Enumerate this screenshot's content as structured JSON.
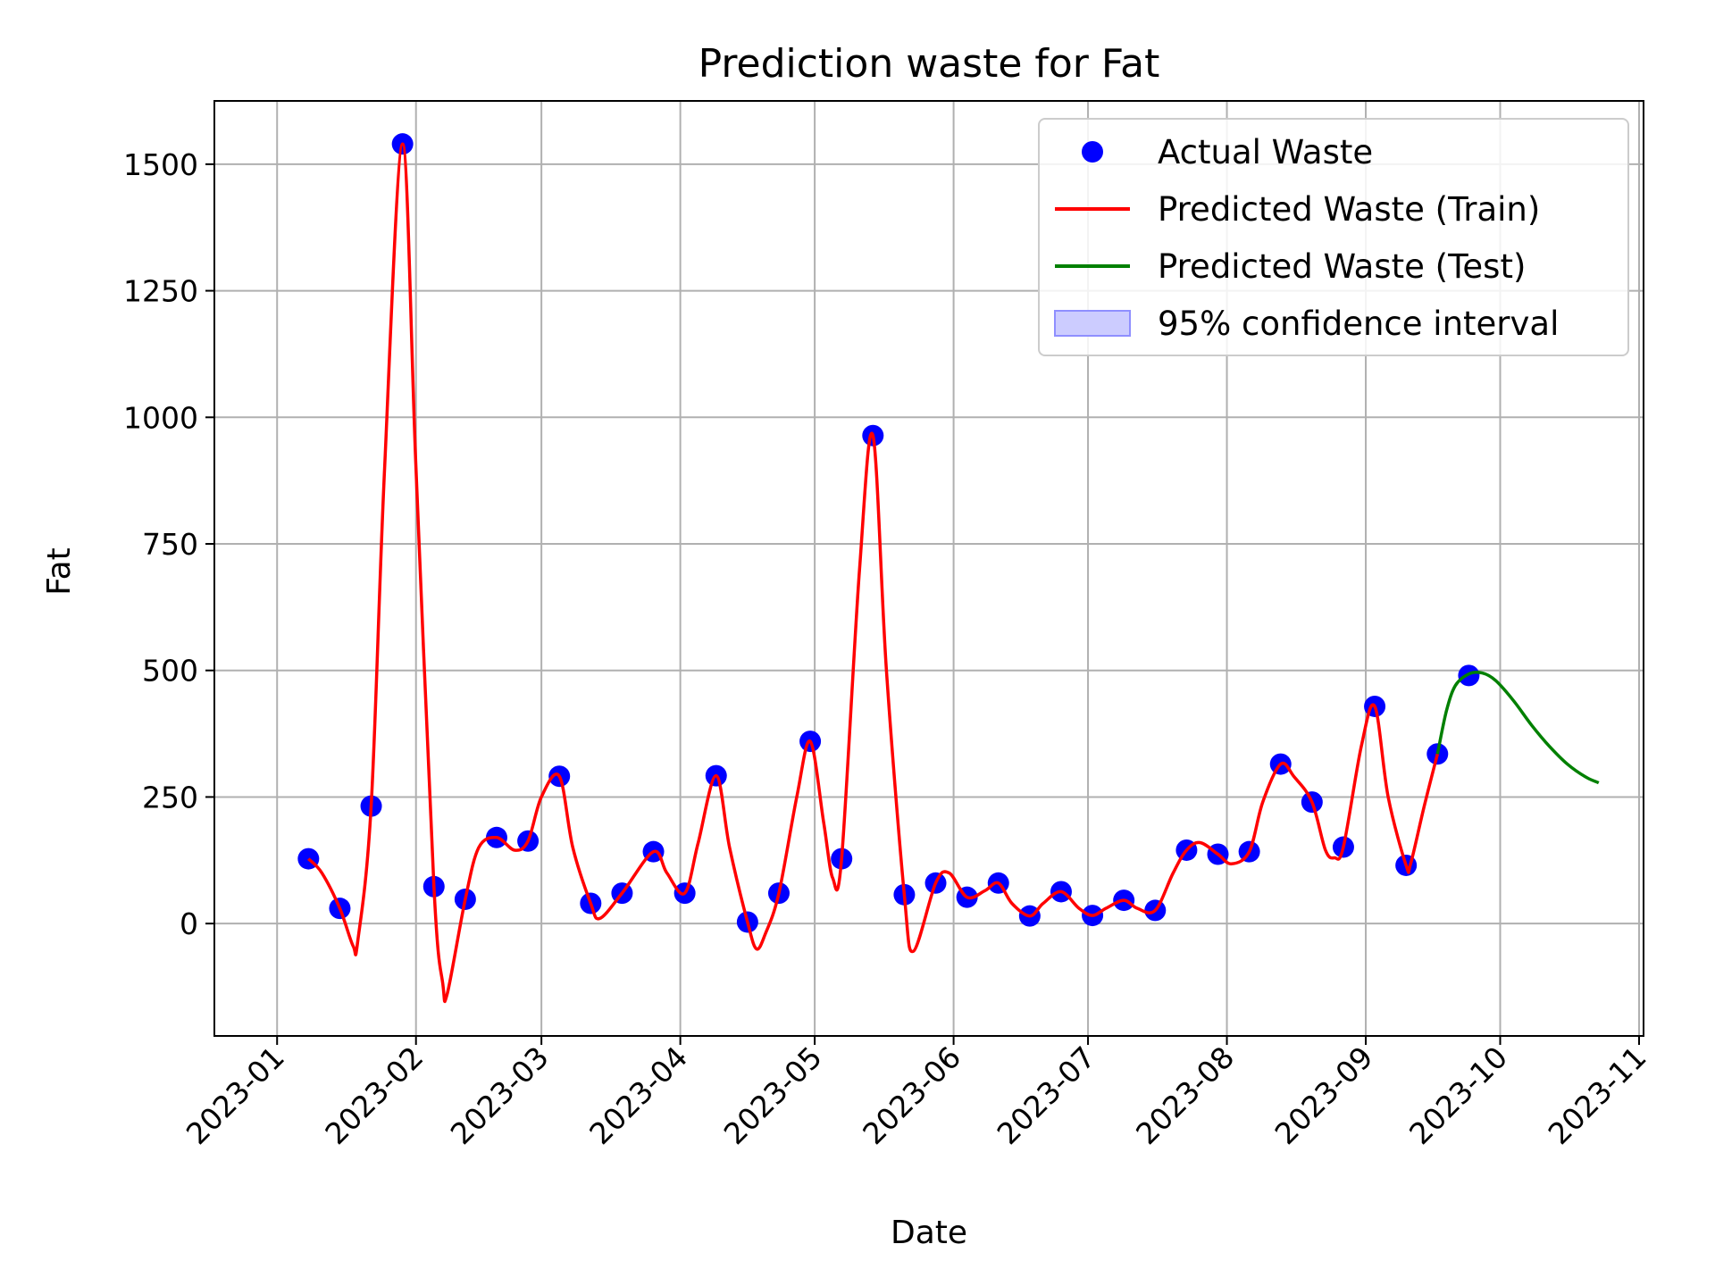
{
  "chart_data": {
    "type": "line",
    "title": "Prediction waste for Fat",
    "xlabel": "Date",
    "ylabel": "Fat",
    "x_tick_labels": [
      "2023-01",
      "2023-02",
      "2023-03",
      "2023-04",
      "2023-05",
      "2023-06",
      "2023-07",
      "2023-08",
      "2023-09",
      "2023-10",
      "2023-11"
    ],
    "x_tick_dates": [
      "2023-01-01",
      "2023-02-01",
      "2023-03-01",
      "2023-04-01",
      "2023-05-01",
      "2023-06-01",
      "2023-07-01",
      "2023-08-01",
      "2023-09-01",
      "2023-10-01",
      "2023-11-01"
    ],
    "xlim": [
      "2022-12-18",
      "2023-11-02"
    ],
    "y_ticks": [
      0,
      250,
      500,
      750,
      1000,
      1250,
      1500
    ],
    "ylim": [
      -222,
      1625
    ],
    "grid": true,
    "legend_position": "top-right",
    "colors": {
      "actual": "#0000ff",
      "train": "#ff0000",
      "test": "#008000",
      "ci_fill": "#ccccff",
      "ci_edge": "#8f8fff"
    },
    "legend": [
      {
        "label": "Actual Waste",
        "kind": "scatter"
      },
      {
        "label": "Predicted Waste (Train)",
        "kind": "line-train"
      },
      {
        "label": "Predicted Waste (Test)",
        "kind": "line-test"
      },
      {
        "label": "95% confidence interval",
        "kind": "band"
      }
    ],
    "actual_waste": [
      {
        "x": "2023-01-08",
        "y": 128
      },
      {
        "x": "2023-01-15",
        "y": 30
      },
      {
        "x": "2023-01-22",
        "y": 232
      },
      {
        "x": "2023-01-29",
        "y": 1540
      },
      {
        "x": "2023-02-05",
        "y": 73
      },
      {
        "x": "2023-02-12",
        "y": 48
      },
      {
        "x": "2023-02-19",
        "y": 170
      },
      {
        "x": "2023-02-26",
        "y": 163
      },
      {
        "x": "2023-03-05",
        "y": 291
      },
      {
        "x": "2023-03-12",
        "y": 40
      },
      {
        "x": "2023-03-19",
        "y": 60
      },
      {
        "x": "2023-03-26",
        "y": 142
      },
      {
        "x": "2023-04-02",
        "y": 60
      },
      {
        "x": "2023-04-09",
        "y": 292
      },
      {
        "x": "2023-04-16",
        "y": 3
      },
      {
        "x": "2023-04-23",
        "y": 60
      },
      {
        "x": "2023-04-30",
        "y": 360
      },
      {
        "x": "2023-05-07",
        "y": 128
      },
      {
        "x": "2023-05-14",
        "y": 964
      },
      {
        "x": "2023-05-21",
        "y": 57
      },
      {
        "x": "2023-05-28",
        "y": 80
      },
      {
        "x": "2023-06-04",
        "y": 52
      },
      {
        "x": "2023-06-11",
        "y": 80
      },
      {
        "x": "2023-06-18",
        "y": 15
      },
      {
        "x": "2023-06-25",
        "y": 63
      },
      {
        "x": "2023-07-02",
        "y": 16
      },
      {
        "x": "2023-07-09",
        "y": 46
      },
      {
        "x": "2023-07-16",
        "y": 26
      },
      {
        "x": "2023-07-23",
        "y": 145
      },
      {
        "x": "2023-07-30",
        "y": 137
      },
      {
        "x": "2023-08-06",
        "y": 142
      },
      {
        "x": "2023-08-13",
        "y": 315
      },
      {
        "x": "2023-08-20",
        "y": 240
      },
      {
        "x": "2023-08-27",
        "y": 151
      },
      {
        "x": "2023-09-03",
        "y": 429
      },
      {
        "x": "2023-09-10",
        "y": 115
      },
      {
        "x": "2023-09-17",
        "y": 335
      },
      {
        "x": "2023-09-24",
        "y": 490
      }
    ],
    "predicted_train": [
      {
        "x": "2023-01-08",
        "y": 128
      },
      {
        "x": "2023-01-11",
        "y": 100
      },
      {
        "x": "2023-01-15",
        "y": 30
      },
      {
        "x": "2023-01-18",
        "y": -45
      },
      {
        "x": "2023-01-19",
        "y": -35
      },
      {
        "x": "2023-01-22",
        "y": 232
      },
      {
        "x": "2023-01-25",
        "y": 900
      },
      {
        "x": "2023-01-29",
        "y": 1540
      },
      {
        "x": "2023-02-01",
        "y": 900
      },
      {
        "x": "2023-02-05",
        "y": 73
      },
      {
        "x": "2023-02-07",
        "y": -120
      },
      {
        "x": "2023-02-08",
        "y": -138
      },
      {
        "x": "2023-02-12",
        "y": 48
      },
      {
        "x": "2023-02-15",
        "y": 150
      },
      {
        "x": "2023-02-19",
        "y": 170
      },
      {
        "x": "2023-02-23",
        "y": 145
      },
      {
        "x": "2023-02-26",
        "y": 163
      },
      {
        "x": "2023-03-01",
        "y": 250
      },
      {
        "x": "2023-03-05",
        "y": 291
      },
      {
        "x": "2023-03-08",
        "y": 150
      },
      {
        "x": "2023-03-12",
        "y": 40
      },
      {
        "x": "2023-03-14",
        "y": 10
      },
      {
        "x": "2023-03-19",
        "y": 60
      },
      {
        "x": "2023-03-26",
        "y": 142
      },
      {
        "x": "2023-03-29",
        "y": 100
      },
      {
        "x": "2023-04-02",
        "y": 60
      },
      {
        "x": "2023-04-05",
        "y": 160
      },
      {
        "x": "2023-04-09",
        "y": 292
      },
      {
        "x": "2023-04-12",
        "y": 150
      },
      {
        "x": "2023-04-16",
        "y": 3
      },
      {
        "x": "2023-04-18",
        "y": -50
      },
      {
        "x": "2023-04-20",
        "y": -20
      },
      {
        "x": "2023-04-23",
        "y": 60
      },
      {
        "x": "2023-04-27",
        "y": 250
      },
      {
        "x": "2023-04-30",
        "y": 360
      },
      {
        "x": "2023-05-03",
        "y": 200
      },
      {
        "x": "2023-05-05",
        "y": 90
      },
      {
        "x": "2023-05-07",
        "y": 128
      },
      {
        "x": "2023-05-11",
        "y": 700
      },
      {
        "x": "2023-05-14",
        "y": 964
      },
      {
        "x": "2023-05-17",
        "y": 500
      },
      {
        "x": "2023-05-21",
        "y": 57
      },
      {
        "x": "2023-05-23",
        "y": -55
      },
      {
        "x": "2023-05-28",
        "y": 80
      },
      {
        "x": "2023-05-31",
        "y": 100
      },
      {
        "x": "2023-06-04",
        "y": 52
      },
      {
        "x": "2023-06-08",
        "y": 65
      },
      {
        "x": "2023-06-11",
        "y": 80
      },
      {
        "x": "2023-06-14",
        "y": 40
      },
      {
        "x": "2023-06-18",
        "y": 15
      },
      {
        "x": "2023-06-21",
        "y": 40
      },
      {
        "x": "2023-06-25",
        "y": 63
      },
      {
        "x": "2023-06-29",
        "y": 30
      },
      {
        "x": "2023-07-02",
        "y": 16
      },
      {
        "x": "2023-07-05",
        "y": 30
      },
      {
        "x": "2023-07-09",
        "y": 46
      },
      {
        "x": "2023-07-12",
        "y": 30
      },
      {
        "x": "2023-07-16",
        "y": 26
      },
      {
        "x": "2023-07-20",
        "y": 100
      },
      {
        "x": "2023-07-23",
        "y": 145
      },
      {
        "x": "2023-07-26",
        "y": 160
      },
      {
        "x": "2023-07-30",
        "y": 137
      },
      {
        "x": "2023-08-02",
        "y": 118
      },
      {
        "x": "2023-08-06",
        "y": 142
      },
      {
        "x": "2023-08-09",
        "y": 240
      },
      {
        "x": "2023-08-13",
        "y": 315
      },
      {
        "x": "2023-08-16",
        "y": 290
      },
      {
        "x": "2023-08-20",
        "y": 240
      },
      {
        "x": "2023-08-23",
        "y": 145
      },
      {
        "x": "2023-08-25",
        "y": 130
      },
      {
        "x": "2023-08-27",
        "y": 151
      },
      {
        "x": "2023-08-31",
        "y": 350
      },
      {
        "x": "2023-09-03",
        "y": 429
      },
      {
        "x": "2023-09-06",
        "y": 250
      },
      {
        "x": "2023-09-10",
        "y": 115
      },
      {
        "x": "2023-09-11",
        "y": 118
      },
      {
        "x": "2023-09-14",
        "y": 230
      },
      {
        "x": "2023-09-17",
        "y": 335
      }
    ],
    "predicted_test": [
      {
        "x": "2023-09-17",
        "y": 335
      },
      {
        "x": "2023-09-19",
        "y": 420
      },
      {
        "x": "2023-09-21",
        "y": 470
      },
      {
        "x": "2023-09-24",
        "y": 493
      },
      {
        "x": "2023-09-27",
        "y": 495
      },
      {
        "x": "2023-09-30",
        "y": 480
      },
      {
        "x": "2023-10-04",
        "y": 440
      },
      {
        "x": "2023-10-08",
        "y": 392
      },
      {
        "x": "2023-10-12",
        "y": 350
      },
      {
        "x": "2023-10-16",
        "y": 315
      },
      {
        "x": "2023-10-20",
        "y": 290
      },
      {
        "x": "2023-10-23",
        "y": 278
      }
    ]
  }
}
